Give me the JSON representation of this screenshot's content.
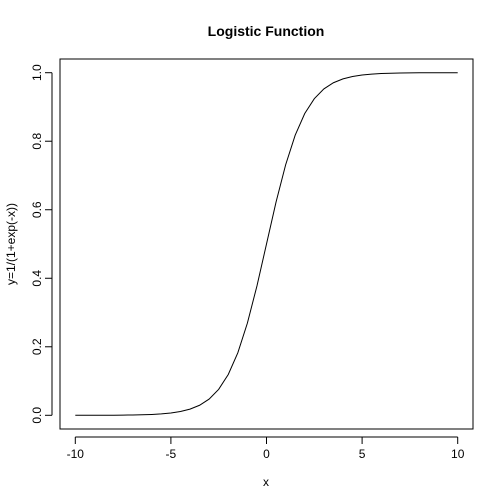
{
  "chart_data": {
    "type": "line",
    "title": "Logistic Function",
    "xlabel": "x",
    "ylabel": "y=1/(1+exp(-x))",
    "xlim": [
      -10.8,
      10.8
    ],
    "ylim": [
      -0.04,
      1.04
    ],
    "xticks": [
      -10,
      -5,
      0,
      5,
      10
    ],
    "yticks": [
      0.0,
      0.2,
      0.4,
      0.6,
      0.8,
      1.0
    ],
    "xtick_labels": [
      "-10",
      "-5",
      "0",
      "5",
      "10"
    ],
    "ytick_labels": [
      "0.0",
      "0.2",
      "0.4",
      "0.6",
      "0.8",
      "1.0"
    ],
    "grid": false,
    "legend": "none",
    "series": [
      {
        "x": [
          -10,
          -9.5,
          -9,
          -8.5,
          -8,
          -7.5,
          -7,
          -6.5,
          -6,
          -5.5,
          -5,
          -4.5,
          -4,
          -3.5,
          -3,
          -2.5,
          -2,
          -1.5,
          -1,
          -0.5,
          0,
          0.5,
          1,
          1.5,
          2,
          2.5,
          3,
          3.5,
          4,
          4.5,
          5,
          5.5,
          6,
          6.5,
          7,
          7.5,
          8,
          8.5,
          9,
          9.5,
          10
        ],
        "y": [
          0.0,
          0.0001,
          0.0001,
          0.0002,
          0.0003,
          0.0006,
          0.0009,
          0.0015,
          0.0025,
          0.0041,
          0.0067,
          0.011,
          0.018,
          0.0293,
          0.0474,
          0.0759,
          0.1192,
          0.1824,
          0.2689,
          0.3775,
          0.5,
          0.6225,
          0.7311,
          0.8176,
          0.8808,
          0.9241,
          0.9526,
          0.9707,
          0.982,
          0.989,
          0.9933,
          0.9959,
          0.9975,
          0.9985,
          0.9991,
          0.9994,
          0.9997,
          0.9998,
          0.9999,
          0.9999,
          1.0
        ]
      }
    ],
    "colors": {
      "line": "#000000",
      "axis": "#000000"
    }
  }
}
